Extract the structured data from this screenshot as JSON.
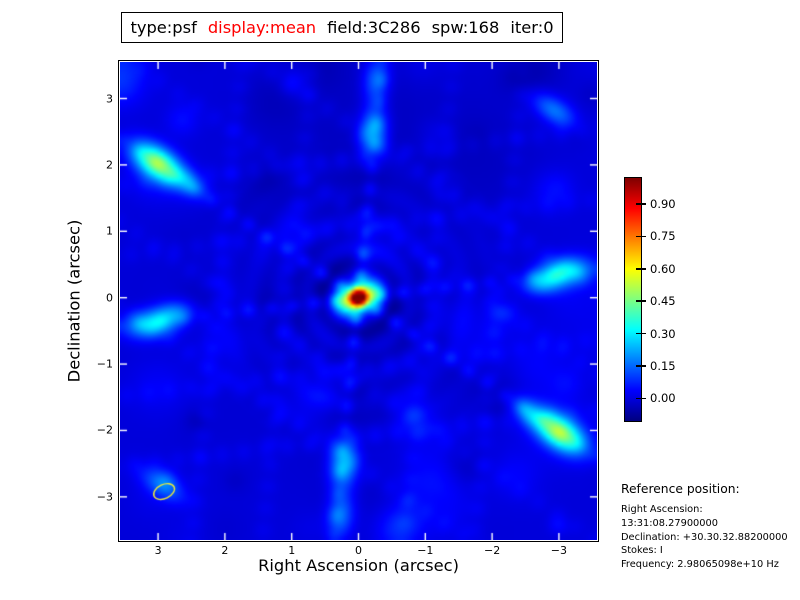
{
  "title": {
    "segments": [
      {
        "text": "type:psf",
        "color": "#000000"
      },
      {
        "text": "display:mean",
        "color": "#ff0000"
      },
      {
        "text": "field:3C286",
        "color": "#000000"
      },
      {
        "text": "spw:168",
        "color": "#000000"
      },
      {
        "text": "iter:0",
        "color": "#000000"
      }
    ]
  },
  "axes": {
    "x_label": "Right Ascension (arcsec)",
    "y_label": "Declination (arcsec)",
    "x_ticks": [
      {
        "v": 3,
        "label": "3"
      },
      {
        "v": 2,
        "label": "2"
      },
      {
        "v": 1,
        "label": "1"
      },
      {
        "v": 0,
        "label": "0"
      },
      {
        "v": -1,
        "label": "−1"
      },
      {
        "v": -2,
        "label": "−2"
      },
      {
        "v": -3,
        "label": "−3"
      }
    ],
    "y_ticks": [
      {
        "v": 3,
        "label": "3"
      },
      {
        "v": 2,
        "label": "2"
      },
      {
        "v": 1,
        "label": "1"
      },
      {
        "v": 0,
        "label": "0"
      },
      {
        "v": -1,
        "label": "−1"
      },
      {
        "v": -2,
        "label": "−2"
      },
      {
        "v": -3,
        "label": "−3"
      }
    ],
    "tick_color": "#ffffff",
    "frame_color": "#000000"
  },
  "colorbar": {
    "ticks": [
      {
        "v": 0.9,
        "label": "0.90"
      },
      {
        "v": 0.75,
        "label": "0.75"
      },
      {
        "v": 0.6,
        "label": "0.60"
      },
      {
        "v": 0.45,
        "label": "0.45"
      },
      {
        "v": 0.3,
        "label": "0.30"
      },
      {
        "v": 0.15,
        "label": "0.15"
      },
      {
        "v": 0.0,
        "label": "0.00"
      }
    ]
  },
  "reference": {
    "heading": "Reference position:",
    "lines": [
      "Right Ascension: 13:31:08.27900000",
      "Declination: +30.30.32.88200000",
      "Stokes: I",
      "Frequency: 2.98065098e+10 Hz"
    ]
  },
  "beam": {
    "ra": 2.91,
    "dec": -2.92,
    "semi_major_arcsec": 0.165,
    "semi_minor_arcsec": 0.105,
    "angle_deg": -25,
    "color": "#e8e83c"
  },
  "chart_data": {
    "type": "heatmap",
    "title": "type:psf display:mean field:3C286 spw:168 iter:0",
    "xlabel": "Right Ascension (arcsec)",
    "ylabel": "Declination (arcsec)",
    "xlim": [
      3.57,
      -3.57
    ],
    "ylim": [
      -3.65,
      3.55
    ],
    "colormap": "jet",
    "value_range": [
      -0.1,
      1.02
    ],
    "colorbar_tick_values": [
      0.9,
      0.75,
      0.6,
      0.45,
      0.3,
      0.15,
      0.0
    ],
    "peak": {
      "ra": 0.0,
      "dec": 0.0,
      "value": 1.0
    },
    "description": "Interferometric point-spread-function image: red elliptical central peak at (0,0) with six dotted sidelobe spokes and cyan-green grating lobes on a blue background",
    "model": {
      "background": 0.0,
      "core": {
        "ra": 0,
        "dec": 0,
        "amp": 1.0,
        "sx": 0.21,
        "sy": 0.145,
        "angle_deg": -22
      },
      "stripes": [
        {
          "angle_deg": 96.0,
          "amp": 0.15,
          "sigma": 0.075,
          "dot_spacing": 0.33,
          "lane_amp": 0.05
        },
        {
          "angle_deg": 33.9,
          "amp": 0.15,
          "sigma": 0.075,
          "dot_spacing": 0.33,
          "lane_amp": 0.05
        },
        {
          "angle_deg": -6.8,
          "amp": 0.13,
          "sigma": 0.075,
          "dot_spacing": 0.33,
          "lane_amp": 0.045
        }
      ],
      "lattice_offsets": [
        -2.1,
        -1.05,
        1.05,
        2.1
      ],
      "lattice_amp": 0.035,
      "rings": {
        "amp": 0.045,
        "spacing": 0.42,
        "phase": 0.35,
        "decay": 0.9
      },
      "lobes": [
        {
          "ra": 3.01,
          "dec": 2.03,
          "amp": 0.46,
          "sx": 0.3,
          "sy": 0.16,
          "angle_deg": 34
        },
        {
          "ra": -3.01,
          "dec": -2.03,
          "amp": 0.46,
          "sx": 0.3,
          "sy": 0.16,
          "angle_deg": 34
        },
        {
          "ra": -0.22,
          "dec": 2.5,
          "amp": 0.25,
          "sx": 0.26,
          "sy": 0.15,
          "angle_deg": 96
        },
        {
          "ra": 0.22,
          "dec": -2.5,
          "amp": 0.25,
          "sx": 0.26,
          "sy": 0.15,
          "angle_deg": 96
        },
        {
          "ra": -0.27,
          "dec": 3.28,
          "amp": 0.17,
          "sx": 0.24,
          "sy": 0.14,
          "angle_deg": 96
        },
        {
          "ra": 0.27,
          "dec": -3.28,
          "amp": 0.17,
          "sx": 0.24,
          "sy": 0.14,
          "angle_deg": 96
        },
        {
          "ra": 3.1,
          "dec": -0.4,
          "amp": 0.28,
          "sx": 0.28,
          "sy": 0.15,
          "angle_deg": -7
        },
        {
          "ra": -3.1,
          "dec": 0.4,
          "amp": 0.28,
          "sx": 0.28,
          "sy": 0.15,
          "angle_deg": -7
        },
        {
          "ra": -2.73,
          "dec": 0.22,
          "amp": 0.2,
          "sx": 0.22,
          "sy": 0.13,
          "angle_deg": -7
        },
        {
          "ra": 2.73,
          "dec": -0.22,
          "amp": 0.16,
          "sx": 0.22,
          "sy": 0.13,
          "angle_deg": -7
        },
        {
          "ra": -2.93,
          "dec": 2.82,
          "amp": 0.17,
          "sx": 0.26,
          "sy": 0.13,
          "angle_deg": 34
        },
        {
          "ra": 2.93,
          "dec": -2.82,
          "amp": 0.15,
          "sx": 0.26,
          "sy": 0.13,
          "angle_deg": 34
        },
        {
          "ra": 2.52,
          "dec": 1.7,
          "amp": 0.14,
          "sx": 0.22,
          "sy": 0.12,
          "angle_deg": 34
        },
        {
          "ra": -2.52,
          "dec": -1.7,
          "amp": 0.14,
          "sx": 0.22,
          "sy": 0.12,
          "angle_deg": 34
        }
      ],
      "mottle": {
        "seed": 7,
        "count": 85,
        "broad_count": 12
      }
    }
  }
}
